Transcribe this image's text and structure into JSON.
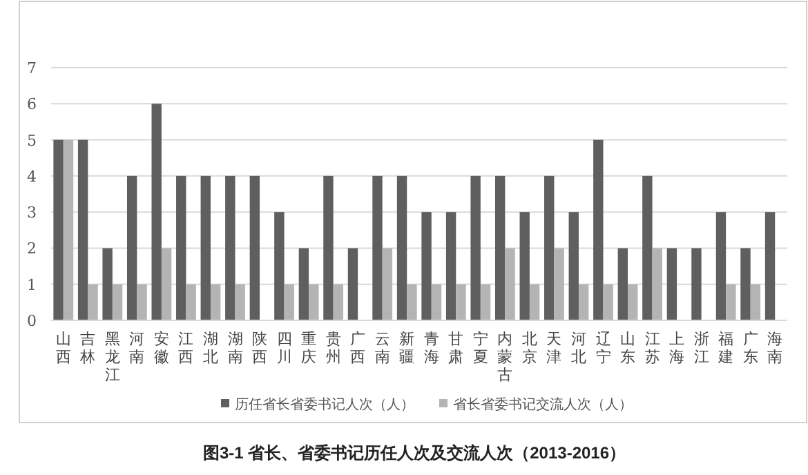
{
  "chart_data": {
    "type": "bar",
    "title": "图3-1  省长、省委书记历任人次及交流人次（2013-2016）",
    "categories": [
      "山西",
      "吉林",
      "黑龙江",
      "河南",
      "安徽",
      "江西",
      "湖北",
      "湖南",
      "陕西",
      "四川",
      "重庆",
      "贵州",
      "广西",
      "云南",
      "新疆",
      "青海",
      "甘肃",
      "宁夏",
      "内蒙古",
      "北京",
      "天津",
      "河北",
      "辽宁",
      "山东",
      "江苏",
      "上海",
      "浙江",
      "福建",
      "广东",
      "海南"
    ],
    "series": [
      {
        "name": "历任省长省委书记人次（人）",
        "color": "#5f5f5f",
        "values": [
          5,
          5,
          2,
          4,
          6,
          4,
          4,
          4,
          4,
          3,
          2,
          4,
          2,
          4,
          4,
          3,
          3,
          4,
          4,
          3,
          4,
          3,
          5,
          2,
          4,
          2,
          2,
          3,
          2,
          3
        ]
      },
      {
        "name": "省长省委书记交流人次（人）",
        "color": "#b4b4b4",
        "values": [
          5,
          1,
          1,
          1,
          2,
          1,
          1,
          1,
          0,
          1,
          1,
          1,
          0,
          2,
          1,
          1,
          1,
          1,
          2,
          1,
          2,
          1,
          1,
          1,
          2,
          0,
          0,
          1,
          1,
          0
        ]
      }
    ],
    "ylim": [
      0,
      7
    ],
    "yticks": [
      0,
      1,
      2,
      3,
      4,
      5,
      6,
      7
    ],
    "grid": "y",
    "legend": "bottom"
  }
}
